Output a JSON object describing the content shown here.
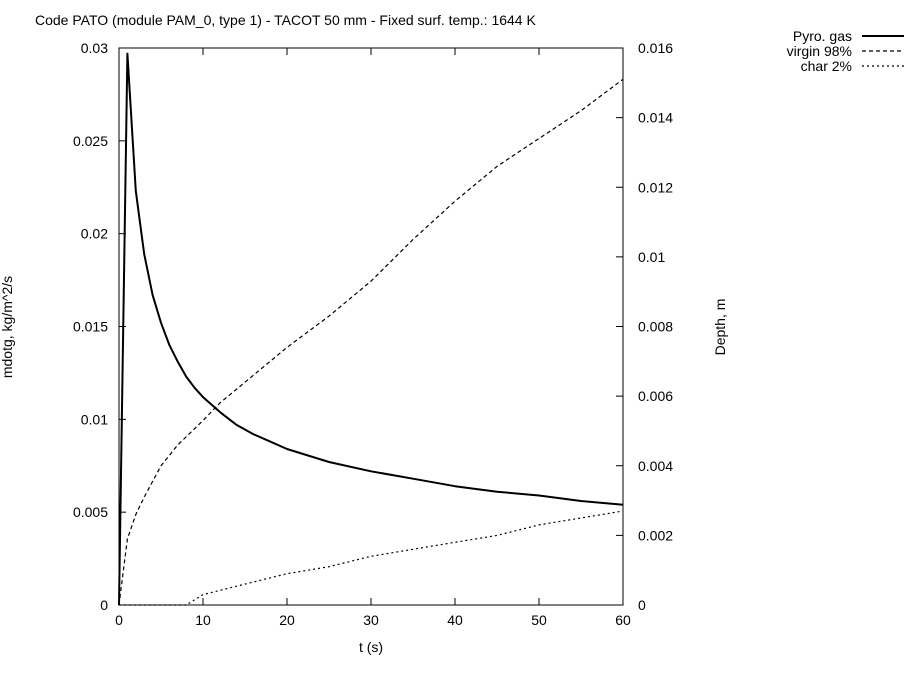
{
  "chart_data": {
    "type": "line",
    "title": "Code PATO (module PAM_0, type 1) - TACOT 50 mm - Fixed surf. temp.: 1644 K",
    "xlabel": "t (s)",
    "ylabel": "mdotg, kg/m^2/s",
    "y2label": "Depth, m",
    "xlim": [
      0,
      60
    ],
    "ylim": [
      0,
      0.03
    ],
    "y2lim": [
      0,
      0.016
    ],
    "x_ticks": [
      "0",
      "10",
      "20",
      "30",
      "40",
      "50",
      "60"
    ],
    "y_ticks": [
      "0",
      "0.005",
      "0.01",
      "0.015",
      "0.02",
      "0.025",
      "0.03"
    ],
    "y2_ticks": [
      "0",
      "0.002",
      "0.004",
      "0.006",
      "0.008",
      "0.01",
      "0.012",
      "0.014",
      "0.016"
    ],
    "grid": false,
    "legend_position": "outside-top-right",
    "series": [
      {
        "name": "Pyro. gas",
        "axis": "left",
        "style": "solid",
        "x": [
          0,
          1,
          2,
          3,
          4,
          5,
          6,
          7,
          8,
          9,
          10,
          12,
          14,
          16,
          18,
          20,
          25,
          30,
          35,
          40,
          45,
          50,
          55,
          60
        ],
        "y": [
          0,
          0.0297,
          0.0223,
          0.0189,
          0.0167,
          0.0152,
          0.014,
          0.0131,
          0.0123,
          0.0117,
          0.0112,
          0.0104,
          0.0097,
          0.0092,
          0.0088,
          0.0084,
          0.0077,
          0.0072,
          0.0068,
          0.0064,
          0.0061,
          0.0059,
          0.0056,
          0.0054
        ]
      },
      {
        "name": "virgin 98%",
        "axis": "right",
        "style": "dashed",
        "x": [
          0,
          1,
          2,
          3,
          5,
          7,
          10,
          12,
          15,
          20,
          25,
          30,
          35,
          40,
          45,
          50,
          55,
          60
        ],
        "y": [
          0,
          0.0019,
          0.0026,
          0.0031,
          0.004,
          0.0046,
          0.0053,
          0.0058,
          0.0064,
          0.0074,
          0.0083,
          0.0093,
          0.0105,
          0.0116,
          0.0126,
          0.0134,
          0.0142,
          0.0151
        ]
      },
      {
        "name": "char 2%",
        "axis": "right",
        "style": "dotted",
        "x": [
          0,
          8,
          10,
          15,
          20,
          25,
          30,
          35,
          40,
          45,
          50,
          55,
          60
        ],
        "y": [
          0,
          0,
          0.0003,
          0.0006,
          0.0009,
          0.0011,
          0.0014,
          0.0016,
          0.0018,
          0.002,
          0.0023,
          0.0025,
          0.0027
        ]
      }
    ]
  }
}
